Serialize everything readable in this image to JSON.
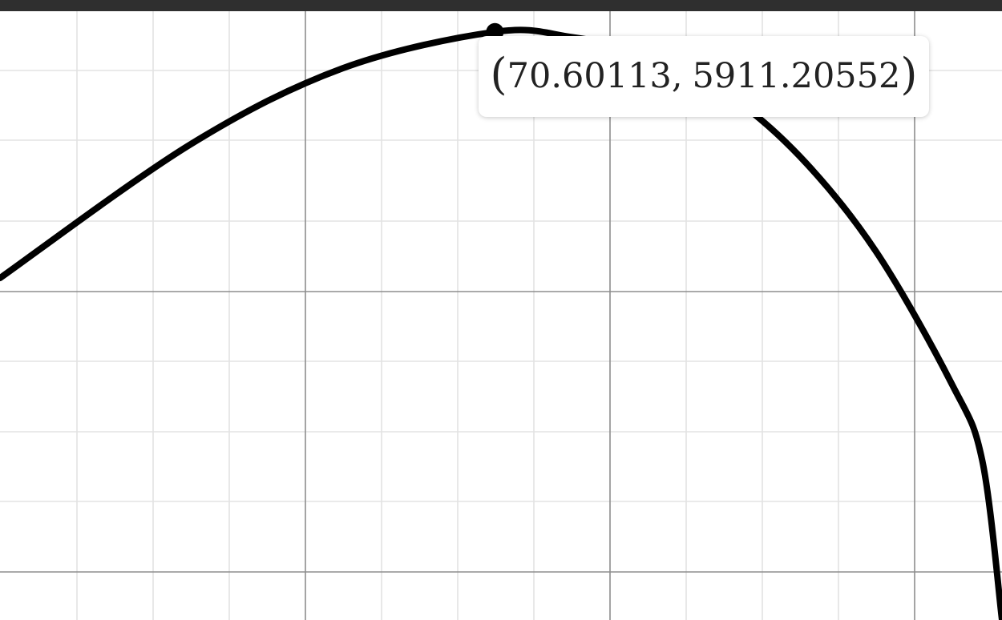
{
  "chart_data": {
    "type": "line",
    "title": "",
    "xlabel": "",
    "ylabel": "",
    "grid": true,
    "xlim": [
      17.5,
      83.3
    ],
    "ylim": [
      4088,
      5975
    ],
    "series": [
      {
        "points": [
          {
            "x": 17.5,
            "y": 5148
          },
          {
            "x": 30.0,
            "y": 5562
          },
          {
            "x": 40.0,
            "y": 5798
          },
          {
            "x": 50.0,
            "y": 5911
          },
          {
            "x": 55.0,
            "y": 5895
          },
          {
            "x": 60.0,
            "y": 5843
          },
          {
            "x": 65.0,
            "y": 5727
          },
          {
            "x": 70.0,
            "y": 5526
          },
          {
            "x": 75.0,
            "y": 5232
          },
          {
            "x": 80.0,
            "y": 4820
          },
          {
            "x": 82.0,
            "y": 4583
          },
          {
            "x": 83.3,
            "y": 4088
          }
        ],
        "color": "#000000"
      }
    ],
    "highlight_point": {
      "x": 70.60113,
      "y": 5911.20552
    },
    "tooltip": {
      "open": "(",
      "x_text": "70.60113",
      "separator": ",",
      "y_text": "5911.20552",
      "close": ")"
    }
  }
}
